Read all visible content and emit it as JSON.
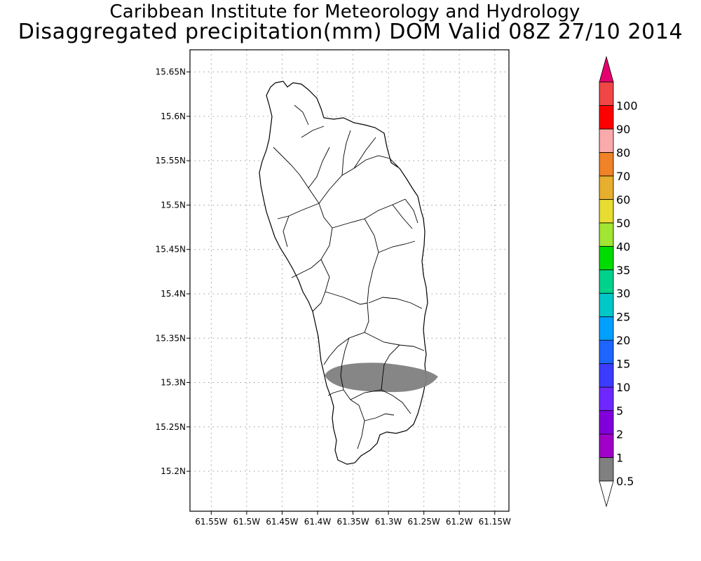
{
  "header": {
    "institute": "Caribbean Institute for Meteorology and Hydrology",
    "product": "Disaggregated precipitation(mm) DOM Valid 08Z 27/10 2014"
  },
  "map": {
    "lon_range": [
      -61.58,
      -61.13
    ],
    "lat_range": [
      15.155,
      15.675
    ],
    "grid": true,
    "lon_ticks": [
      {
        "value": -61.55,
        "label": "61.55W"
      },
      {
        "value": -61.5,
        "label": "61.5W"
      },
      {
        "value": -61.45,
        "label": "61.45W"
      },
      {
        "value": -61.4,
        "label": "61.4W"
      },
      {
        "value": -61.35,
        "label": "61.35W"
      },
      {
        "value": -61.3,
        "label": "61.3W"
      },
      {
        "value": -61.25,
        "label": "61.25W"
      },
      {
        "value": -61.2,
        "label": "61.2W"
      },
      {
        "value": -61.15,
        "label": "61.15W"
      }
    ],
    "lat_ticks": [
      {
        "value": 15.65,
        "label": "15.65N"
      },
      {
        "value": 15.6,
        "label": "15.6N"
      },
      {
        "value": 15.55,
        "label": "15.55N"
      },
      {
        "value": 15.5,
        "label": "15.5N"
      },
      {
        "value": 15.45,
        "label": "15.45N"
      },
      {
        "value": 15.4,
        "label": "15.4N"
      },
      {
        "value": 15.35,
        "label": "15.35N"
      },
      {
        "value": 15.3,
        "label": "15.3N"
      },
      {
        "value": 15.25,
        "label": "15.25N"
      },
      {
        "value": 15.2,
        "label": "15.2N"
      }
    ],
    "precip_band": {
      "lon_min": -61.39,
      "lon_max": -61.23,
      "lat_center": 15.305,
      "lat_half_width": 0.014,
      "class": "0.5-1",
      "color": "#808080"
    }
  },
  "colorbar": {
    "levels": [
      "0.5",
      "1",
      "2",
      "5",
      "10",
      "15",
      "20",
      "25",
      "30",
      "35",
      "40",
      "50",
      "60",
      "70",
      "80",
      "90",
      "100"
    ],
    "colors": [
      "#808080",
      "#a000c8",
      "#8200dc",
      "#6e28ff",
      "#3c3cff",
      "#1e64ff",
      "#00a0ff",
      "#00c8c8",
      "#00d28c",
      "#00dc00",
      "#a0e632",
      "#e6dc32",
      "#e6af2d",
      "#f08228",
      "#faaaaa",
      "#ff0000",
      "#f04646"
    ],
    "over_color": "#e6006e",
    "under_color": "#ffffff"
  }
}
